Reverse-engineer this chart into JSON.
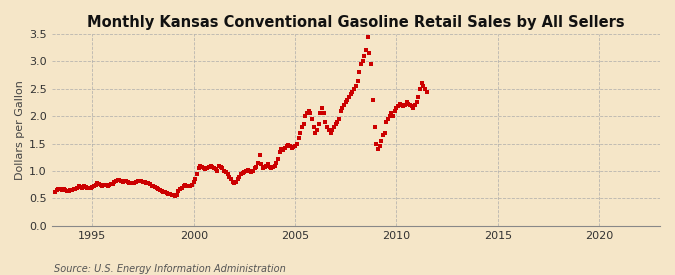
{
  "title": "Monthly Kansas Conventional Gasoline Retail Sales by All Sellers",
  "ylabel": "Dollars per Gallon",
  "source": "Source: U.S. Energy Information Administration",
  "bg_color": "#F5E6C8",
  "plot_bg_color": "#F5E6C8",
  "dot_color": "#CC0000",
  "dot_size": 5,
  "xlim": [
    1993.0,
    2023.0
  ],
  "ylim": [
    0.0,
    3.5
  ],
  "yticks": [
    0.0,
    0.5,
    1.0,
    1.5,
    2.0,
    2.5,
    3.0,
    3.5
  ],
  "xticks": [
    1995,
    2000,
    2005,
    2010,
    2015,
    2020
  ],
  "grid_color": "#AAAAAA",
  "title_fontsize": 10.5,
  "label_fontsize": 8,
  "tick_fontsize": 8,
  "source_fontsize": 7,
  "data": [
    [
      1993.17,
      0.62
    ],
    [
      1993.25,
      0.65
    ],
    [
      1993.33,
      0.67
    ],
    [
      1993.42,
      0.68
    ],
    [
      1993.5,
      0.65
    ],
    [
      1993.58,
      0.67
    ],
    [
      1993.67,
      0.66
    ],
    [
      1993.75,
      0.63
    ],
    [
      1993.83,
      0.64
    ],
    [
      1993.92,
      0.65
    ],
    [
      1994.0,
      0.66
    ],
    [
      1994.08,
      0.67
    ],
    [
      1994.17,
      0.68
    ],
    [
      1994.25,
      0.7
    ],
    [
      1994.33,
      0.73
    ],
    [
      1994.42,
      0.71
    ],
    [
      1994.5,
      0.7
    ],
    [
      1994.58,
      0.72
    ],
    [
      1994.67,
      0.71
    ],
    [
      1994.75,
      0.7
    ],
    [
      1994.83,
      0.69
    ],
    [
      1994.92,
      0.7
    ],
    [
      1995.0,
      0.71
    ],
    [
      1995.08,
      0.72
    ],
    [
      1995.17,
      0.75
    ],
    [
      1995.25,
      0.78
    ],
    [
      1995.33,
      0.76
    ],
    [
      1995.42,
      0.75
    ],
    [
      1995.5,
      0.73
    ],
    [
      1995.58,
      0.74
    ],
    [
      1995.67,
      0.75
    ],
    [
      1995.75,
      0.73
    ],
    [
      1995.83,
      0.74
    ],
    [
      1995.92,
      0.76
    ],
    [
      1996.0,
      0.77
    ],
    [
      1996.08,
      0.8
    ],
    [
      1996.17,
      0.82
    ],
    [
      1996.25,
      0.84
    ],
    [
      1996.33,
      0.83
    ],
    [
      1996.42,
      0.81
    ],
    [
      1996.5,
      0.8
    ],
    [
      1996.58,
      0.82
    ],
    [
      1996.67,
      0.81
    ],
    [
      1996.75,
      0.8
    ],
    [
      1996.83,
      0.79
    ],
    [
      1996.92,
      0.78
    ],
    [
      1997.0,
      0.79
    ],
    [
      1997.08,
      0.79
    ],
    [
      1997.17,
      0.8
    ],
    [
      1997.25,
      0.82
    ],
    [
      1997.33,
      0.82
    ],
    [
      1997.42,
      0.81
    ],
    [
      1997.5,
      0.8
    ],
    [
      1997.58,
      0.8
    ],
    [
      1997.67,
      0.79
    ],
    [
      1997.75,
      0.78
    ],
    [
      1997.83,
      0.77
    ],
    [
      1997.92,
      0.73
    ],
    [
      1998.0,
      0.72
    ],
    [
      1998.08,
      0.71
    ],
    [
      1998.17,
      0.7
    ],
    [
      1998.25,
      0.68
    ],
    [
      1998.33,
      0.65
    ],
    [
      1998.42,
      0.63
    ],
    [
      1998.5,
      0.62
    ],
    [
      1998.58,
      0.61
    ],
    [
      1998.67,
      0.6
    ],
    [
      1998.75,
      0.59
    ],
    [
      1998.83,
      0.58
    ],
    [
      1998.92,
      0.57
    ],
    [
      1999.0,
      0.56
    ],
    [
      1999.08,
      0.55
    ],
    [
      1999.17,
      0.57
    ],
    [
      1999.25,
      0.63
    ],
    [
      1999.33,
      0.68
    ],
    [
      1999.42,
      0.7
    ],
    [
      1999.5,
      0.72
    ],
    [
      1999.58,
      0.74
    ],
    [
      1999.67,
      0.73
    ],
    [
      1999.75,
      0.72
    ],
    [
      1999.83,
      0.73
    ],
    [
      1999.92,
      0.74
    ],
    [
      2000.0,
      0.8
    ],
    [
      2000.08,
      0.85
    ],
    [
      2000.17,
      0.95
    ],
    [
      2000.25,
      1.05
    ],
    [
      2000.33,
      1.1
    ],
    [
      2000.42,
      1.08
    ],
    [
      2000.5,
      1.06
    ],
    [
      2000.58,
      1.03
    ],
    [
      2000.67,
      1.05
    ],
    [
      2000.75,
      1.07
    ],
    [
      2000.83,
      1.1
    ],
    [
      2000.92,
      1.08
    ],
    [
      2001.0,
      1.05
    ],
    [
      2001.08,
      1.03
    ],
    [
      2001.17,
      1.0
    ],
    [
      2001.25,
      1.1
    ],
    [
      2001.33,
      1.08
    ],
    [
      2001.42,
      1.05
    ],
    [
      2001.5,
      1.0
    ],
    [
      2001.58,
      0.98
    ],
    [
      2001.67,
      0.95
    ],
    [
      2001.75,
      0.9
    ],
    [
      2001.83,
      0.85
    ],
    [
      2001.92,
      0.8
    ],
    [
      2002.0,
      0.78
    ],
    [
      2002.08,
      0.8
    ],
    [
      2002.17,
      0.85
    ],
    [
      2002.25,
      0.9
    ],
    [
      2002.33,
      0.95
    ],
    [
      2002.42,
      0.97
    ],
    [
      2002.5,
      0.98
    ],
    [
      2002.58,
      1.0
    ],
    [
      2002.67,
      1.02
    ],
    [
      2002.75,
      1.0
    ],
    [
      2002.83,
      0.98
    ],
    [
      2002.92,
      1.0
    ],
    [
      2003.0,
      1.05
    ],
    [
      2003.08,
      1.08
    ],
    [
      2003.17,
      1.15
    ],
    [
      2003.25,
      1.3
    ],
    [
      2003.33,
      1.12
    ],
    [
      2003.42,
      1.05
    ],
    [
      2003.5,
      1.08
    ],
    [
      2003.58,
      1.1
    ],
    [
      2003.67,
      1.12
    ],
    [
      2003.75,
      1.08
    ],
    [
      2003.83,
      1.05
    ],
    [
      2003.92,
      1.07
    ],
    [
      2004.0,
      1.1
    ],
    [
      2004.08,
      1.15
    ],
    [
      2004.17,
      1.22
    ],
    [
      2004.25,
      1.35
    ],
    [
      2004.33,
      1.4
    ],
    [
      2004.42,
      1.38
    ],
    [
      2004.5,
      1.42
    ],
    [
      2004.58,
      1.45
    ],
    [
      2004.67,
      1.48
    ],
    [
      2004.75,
      1.45
    ],
    [
      2004.83,
      1.42
    ],
    [
      2004.92,
      1.44
    ],
    [
      2005.0,
      1.45
    ],
    [
      2005.08,
      1.5
    ],
    [
      2005.17,
      1.6
    ],
    [
      2005.25,
      1.7
    ],
    [
      2005.33,
      1.8
    ],
    [
      2005.42,
      1.85
    ],
    [
      2005.5,
      2.0
    ],
    [
      2005.58,
      2.05
    ],
    [
      2005.67,
      2.1
    ],
    [
      2005.75,
      2.05
    ],
    [
      2005.83,
      1.95
    ],
    [
      2005.92,
      1.8
    ],
    [
      2006.0,
      1.7
    ],
    [
      2006.08,
      1.75
    ],
    [
      2006.17,
      1.85
    ],
    [
      2006.25,
      2.05
    ],
    [
      2006.33,
      2.15
    ],
    [
      2006.42,
      2.05
    ],
    [
      2006.5,
      1.9
    ],
    [
      2006.58,
      1.8
    ],
    [
      2006.67,
      1.75
    ],
    [
      2006.75,
      1.7
    ],
    [
      2006.83,
      1.75
    ],
    [
      2006.92,
      1.8
    ],
    [
      2007.0,
      1.85
    ],
    [
      2007.08,
      1.9
    ],
    [
      2007.17,
      1.95
    ],
    [
      2007.25,
      2.1
    ],
    [
      2007.33,
      2.15
    ],
    [
      2007.42,
      2.2
    ],
    [
      2007.5,
      2.25
    ],
    [
      2007.58,
      2.3
    ],
    [
      2007.67,
      2.35
    ],
    [
      2007.75,
      2.4
    ],
    [
      2007.83,
      2.45
    ],
    [
      2007.92,
      2.5
    ],
    [
      2008.0,
      2.55
    ],
    [
      2008.08,
      2.65
    ],
    [
      2008.17,
      2.8
    ],
    [
      2008.25,
      2.95
    ],
    [
      2008.33,
      3.0
    ],
    [
      2008.42,
      3.1
    ],
    [
      2008.5,
      3.2
    ],
    [
      2008.58,
      3.45
    ],
    [
      2008.67,
      3.15
    ],
    [
      2008.75,
      2.95
    ],
    [
      2008.83,
      2.3
    ],
    [
      2008.92,
      1.8
    ],
    [
      2009.0,
      1.5
    ],
    [
      2009.08,
      1.4
    ],
    [
      2009.17,
      1.45
    ],
    [
      2009.25,
      1.55
    ],
    [
      2009.33,
      1.65
    ],
    [
      2009.42,
      1.7
    ],
    [
      2009.5,
      1.9
    ],
    [
      2009.58,
      1.95
    ],
    [
      2009.67,
      2.0
    ],
    [
      2009.75,
      2.05
    ],
    [
      2009.83,
      2.0
    ],
    [
      2009.92,
      2.1
    ],
    [
      2010.0,
      2.15
    ],
    [
      2010.08,
      2.18
    ],
    [
      2010.17,
      2.22
    ],
    [
      2010.25,
      2.2
    ],
    [
      2010.33,
      2.18
    ],
    [
      2010.42,
      2.2
    ],
    [
      2010.5,
      2.25
    ],
    [
      2010.58,
      2.22
    ],
    [
      2010.67,
      2.2
    ],
    [
      2010.75,
      2.18
    ],
    [
      2010.83,
      2.15
    ],
    [
      2010.92,
      2.2
    ],
    [
      2011.0,
      2.25
    ],
    [
      2011.08,
      2.35
    ],
    [
      2011.17,
      2.5
    ],
    [
      2011.25,
      2.6
    ],
    [
      2011.33,
      2.55
    ],
    [
      2011.42,
      2.5
    ],
    [
      2011.5,
      2.45
    ]
  ]
}
